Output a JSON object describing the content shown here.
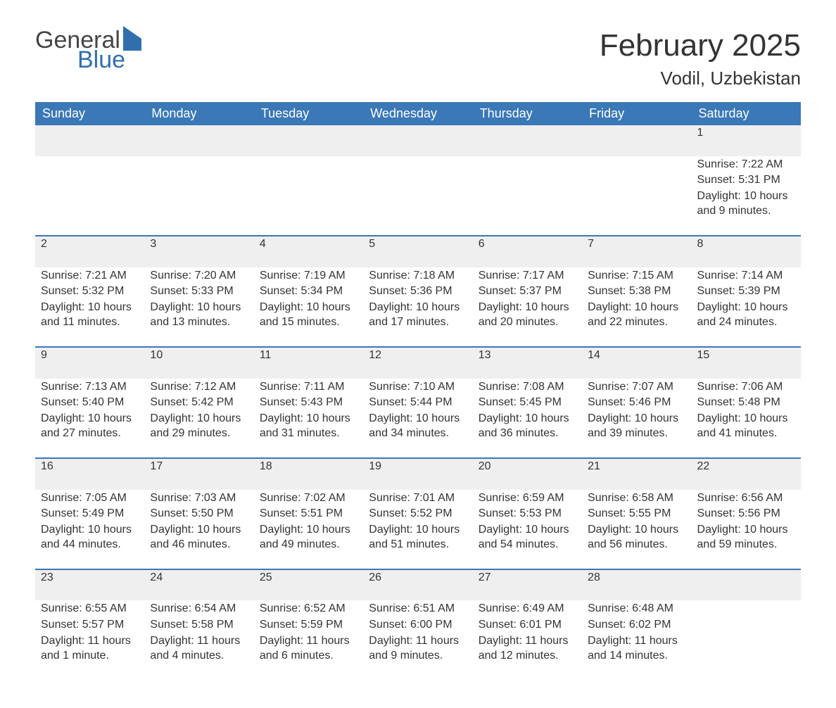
{
  "brand": {
    "part1": "General",
    "part2": "Blue"
  },
  "title": "February 2025",
  "location": "Vodil, Uzbekistan",
  "colors": {
    "header_bg": "#3a78b7",
    "header_text": "#ffffff",
    "row_border": "#3a78b7",
    "daynum_bg": "#efefef",
    "body_text": "#333333",
    "brand_gray": "#444444",
    "brand_blue": "#2f6fae",
    "page_bg": "#ffffff"
  },
  "weekdays": [
    "Sunday",
    "Monday",
    "Tuesday",
    "Wednesday",
    "Thursday",
    "Friday",
    "Saturday"
  ],
  "weeks": [
    [
      null,
      null,
      null,
      null,
      null,
      null,
      {
        "n": "1",
        "sunrise": "Sunrise: 7:22 AM",
        "sunset": "Sunset: 5:31 PM",
        "daylight": "Daylight: 10 hours and 9 minutes."
      }
    ],
    [
      {
        "n": "2",
        "sunrise": "Sunrise: 7:21 AM",
        "sunset": "Sunset: 5:32 PM",
        "daylight": "Daylight: 10 hours and 11 minutes."
      },
      {
        "n": "3",
        "sunrise": "Sunrise: 7:20 AM",
        "sunset": "Sunset: 5:33 PM",
        "daylight": "Daylight: 10 hours and 13 minutes."
      },
      {
        "n": "4",
        "sunrise": "Sunrise: 7:19 AM",
        "sunset": "Sunset: 5:34 PM",
        "daylight": "Daylight: 10 hours and 15 minutes."
      },
      {
        "n": "5",
        "sunrise": "Sunrise: 7:18 AM",
        "sunset": "Sunset: 5:36 PM",
        "daylight": "Daylight: 10 hours and 17 minutes."
      },
      {
        "n": "6",
        "sunrise": "Sunrise: 7:17 AM",
        "sunset": "Sunset: 5:37 PM",
        "daylight": "Daylight: 10 hours and 20 minutes."
      },
      {
        "n": "7",
        "sunrise": "Sunrise: 7:15 AM",
        "sunset": "Sunset: 5:38 PM",
        "daylight": "Daylight: 10 hours and 22 minutes."
      },
      {
        "n": "8",
        "sunrise": "Sunrise: 7:14 AM",
        "sunset": "Sunset: 5:39 PM",
        "daylight": "Daylight: 10 hours and 24 minutes."
      }
    ],
    [
      {
        "n": "9",
        "sunrise": "Sunrise: 7:13 AM",
        "sunset": "Sunset: 5:40 PM",
        "daylight": "Daylight: 10 hours and 27 minutes."
      },
      {
        "n": "10",
        "sunrise": "Sunrise: 7:12 AM",
        "sunset": "Sunset: 5:42 PM",
        "daylight": "Daylight: 10 hours and 29 minutes."
      },
      {
        "n": "11",
        "sunrise": "Sunrise: 7:11 AM",
        "sunset": "Sunset: 5:43 PM",
        "daylight": "Daylight: 10 hours and 31 minutes."
      },
      {
        "n": "12",
        "sunrise": "Sunrise: 7:10 AM",
        "sunset": "Sunset: 5:44 PM",
        "daylight": "Daylight: 10 hours and 34 minutes."
      },
      {
        "n": "13",
        "sunrise": "Sunrise: 7:08 AM",
        "sunset": "Sunset: 5:45 PM",
        "daylight": "Daylight: 10 hours and 36 minutes."
      },
      {
        "n": "14",
        "sunrise": "Sunrise: 7:07 AM",
        "sunset": "Sunset: 5:46 PM",
        "daylight": "Daylight: 10 hours and 39 minutes."
      },
      {
        "n": "15",
        "sunrise": "Sunrise: 7:06 AM",
        "sunset": "Sunset: 5:48 PM",
        "daylight": "Daylight: 10 hours and 41 minutes."
      }
    ],
    [
      {
        "n": "16",
        "sunrise": "Sunrise: 7:05 AM",
        "sunset": "Sunset: 5:49 PM",
        "daylight": "Daylight: 10 hours and 44 minutes."
      },
      {
        "n": "17",
        "sunrise": "Sunrise: 7:03 AM",
        "sunset": "Sunset: 5:50 PM",
        "daylight": "Daylight: 10 hours and 46 minutes."
      },
      {
        "n": "18",
        "sunrise": "Sunrise: 7:02 AM",
        "sunset": "Sunset: 5:51 PM",
        "daylight": "Daylight: 10 hours and 49 minutes."
      },
      {
        "n": "19",
        "sunrise": "Sunrise: 7:01 AM",
        "sunset": "Sunset: 5:52 PM",
        "daylight": "Daylight: 10 hours and 51 minutes."
      },
      {
        "n": "20",
        "sunrise": "Sunrise: 6:59 AM",
        "sunset": "Sunset: 5:53 PM",
        "daylight": "Daylight: 10 hours and 54 minutes."
      },
      {
        "n": "21",
        "sunrise": "Sunrise: 6:58 AM",
        "sunset": "Sunset: 5:55 PM",
        "daylight": "Daylight: 10 hours and 56 minutes."
      },
      {
        "n": "22",
        "sunrise": "Sunrise: 6:56 AM",
        "sunset": "Sunset: 5:56 PM",
        "daylight": "Daylight: 10 hours and 59 minutes."
      }
    ],
    [
      {
        "n": "23",
        "sunrise": "Sunrise: 6:55 AM",
        "sunset": "Sunset: 5:57 PM",
        "daylight": "Daylight: 11 hours and 1 minute."
      },
      {
        "n": "24",
        "sunrise": "Sunrise: 6:54 AM",
        "sunset": "Sunset: 5:58 PM",
        "daylight": "Daylight: 11 hours and 4 minutes."
      },
      {
        "n": "25",
        "sunrise": "Sunrise: 6:52 AM",
        "sunset": "Sunset: 5:59 PM",
        "daylight": "Daylight: 11 hours and 6 minutes."
      },
      {
        "n": "26",
        "sunrise": "Sunrise: 6:51 AM",
        "sunset": "Sunset: 6:00 PM",
        "daylight": "Daylight: 11 hours and 9 minutes."
      },
      {
        "n": "27",
        "sunrise": "Sunrise: 6:49 AM",
        "sunset": "Sunset: 6:01 PM",
        "daylight": "Daylight: 11 hours and 12 minutes."
      },
      {
        "n": "28",
        "sunrise": "Sunrise: 6:48 AM",
        "sunset": "Sunset: 6:02 PM",
        "daylight": "Daylight: 11 hours and 14 minutes."
      },
      null
    ]
  ]
}
